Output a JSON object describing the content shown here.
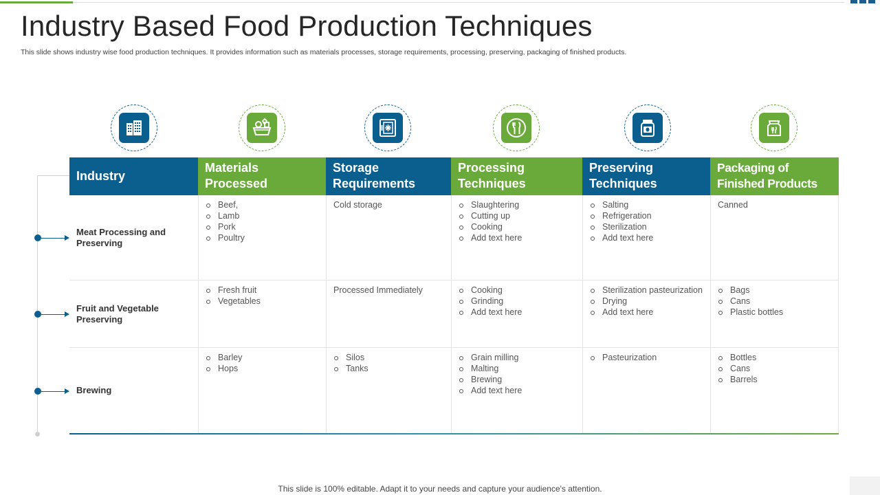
{
  "title": "Industry Based Food Production Techniques",
  "subtitle": "This slide shows industry wise food production techniques. It provides information such as materials processes, storage requirements, processing, preserving, packaging of finished products.",
  "icons": [
    {
      "name": "building-icon",
      "color": "#0b5f8f"
    },
    {
      "name": "food-basket-icon",
      "color": "#6aaa3a"
    },
    {
      "name": "freezer-safe-icon",
      "color": "#0b5f8f"
    },
    {
      "name": "plate-cutlery-icon",
      "color": "#6aaa3a"
    },
    {
      "name": "jar-icon",
      "color": "#0b5f8f"
    },
    {
      "name": "food-bag-icon",
      "color": "#6aaa3a"
    }
  ],
  "table": {
    "headers": [
      "Industry",
      "Materials Processed",
      "Storage Requirements",
      "Processing Techniques",
      "Preserving Techniques",
      "Packaging of Finished Products"
    ],
    "rows": [
      {
        "industry": "Meat Processing and Preserving",
        "materials": [
          "Beef,",
          "Lamb",
          "Pork",
          "Poultry"
        ],
        "storage_text": "Cold storage",
        "processing": [
          "Slaughtering",
          "Cutting up",
          "Cooking",
          "Add text here"
        ],
        "preserving": [
          "Salting",
          "Refrigeration",
          "Sterilization",
          "Add text here"
        ],
        "packaging_text": "Canned"
      },
      {
        "industry": "Fruit and Vegetable Preserving",
        "materials": [
          "Fresh fruit",
          "Vegetables"
        ],
        "storage_text": "Processed Immediately",
        "processing": [
          "Cooking",
          "Grinding",
          "Add text here"
        ],
        "preserving": [
          "Sterilization pasteurization",
          "Drying",
          "Add text here"
        ],
        "packaging": [
          "Bags",
          "Cans",
          "Plastic bottles"
        ]
      },
      {
        "industry": "Brewing",
        "materials": [
          "Barley",
          "Hops"
        ],
        "storage": [
          "Silos",
          "Tanks"
        ],
        "processing": [
          "Grain milling",
          "Malting",
          "Brewing",
          "Add text here"
        ],
        "preserving": [
          "Pasteurization"
        ],
        "packaging": [
          "Bottles",
          "Cans",
          "Barrels"
        ]
      }
    ]
  },
  "colors": {
    "blue": "#0b5f8f",
    "green": "#6aaa3a"
  },
  "footer": "This slide is 100% editable. Adapt it to your needs and capture your audience's attention."
}
